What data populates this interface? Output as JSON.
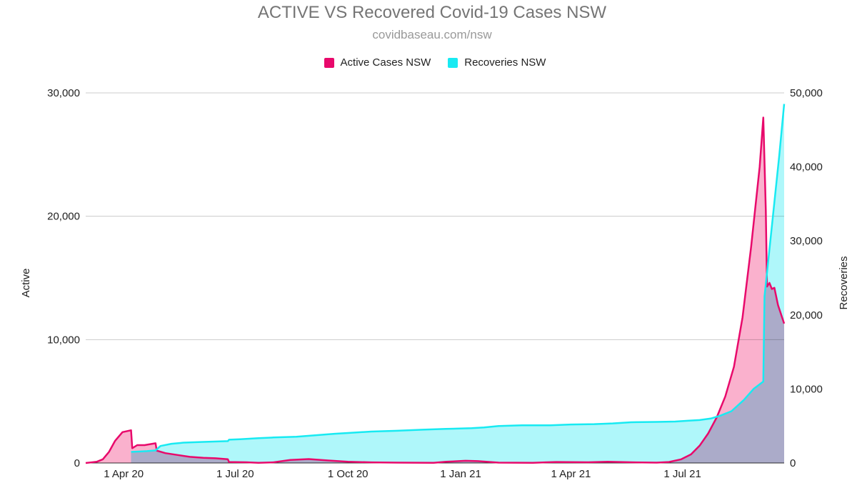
{
  "chart_data": {
    "type": "area",
    "title": "ACTIVE VS Recovered Covid-19 Cases NSW",
    "subtitle": "covidbaseau.com/nsw",
    "y_left_label": "Active",
    "y_right_label": "Recoveries",
    "x_ticks": [
      "1 Apr 20",
      "1 Jul 20",
      "1 Oct 20",
      "1 Jan 21",
      "1 Apr 21",
      "1 Jul 21"
    ],
    "x_tick_dates": [
      "2020-04-01",
      "2020-07-01",
      "2020-10-01",
      "2021-01-01",
      "2021-04-01",
      "2021-07-01"
    ],
    "y_left_ticks": [
      "0",
      "10,000",
      "20,000",
      "30,000"
    ],
    "y_right_ticks": [
      "0",
      "10,000",
      "20,000",
      "30,000",
      "40,000",
      "50,000"
    ],
    "ylim_left": [
      0,
      30000
    ],
    "ylim_right": [
      0,
      50000
    ],
    "xlim": [
      "2020-03-01",
      "2021-09-22"
    ],
    "grid": true,
    "legend_position": "top",
    "series": [
      {
        "name": "Active Cases NSW",
        "axis": "left",
        "color": "#e8096b",
        "fill": "#f9a9c8",
        "points": [
          [
            "2020-03-01",
            0
          ],
          [
            "2020-03-10",
            100
          ],
          [
            "2020-03-15",
            300
          ],
          [
            "2020-03-20",
            900
          ],
          [
            "2020-03-25",
            1800
          ],
          [
            "2020-03-31",
            2500
          ],
          [
            "2020-04-07",
            2650
          ],
          [
            "2020-04-08",
            1200
          ],
          [
            "2020-04-12",
            1450
          ],
          [
            "2020-04-18",
            1450
          ],
          [
            "2020-04-27",
            1600
          ],
          [
            "2020-04-28",
            1000
          ],
          [
            "2020-05-05",
            800
          ],
          [
            "2020-05-15",
            650
          ],
          [
            "2020-05-25",
            500
          ],
          [
            "2020-06-05",
            420
          ],
          [
            "2020-06-15",
            380
          ],
          [
            "2020-06-25",
            300
          ],
          [
            "2020-06-26",
            80
          ],
          [
            "2020-07-10",
            60
          ],
          [
            "2020-07-20",
            20
          ],
          [
            "2020-08-01",
            50
          ],
          [
            "2020-08-15",
            250
          ],
          [
            "2020-08-30",
            320
          ],
          [
            "2020-09-15",
            200
          ],
          [
            "2020-10-01",
            100
          ],
          [
            "2020-10-20",
            50
          ],
          [
            "2020-11-10",
            30
          ],
          [
            "2020-12-10",
            20
          ],
          [
            "2020-12-20",
            100
          ],
          [
            "2021-01-05",
            180
          ],
          [
            "2021-01-15",
            150
          ],
          [
            "2021-02-01",
            30
          ],
          [
            "2021-03-01",
            20
          ],
          [
            "2021-03-20",
            80
          ],
          [
            "2021-04-15",
            60
          ],
          [
            "2021-05-01",
            100
          ],
          [
            "2021-05-20",
            60
          ],
          [
            "2021-06-10",
            30
          ],
          [
            "2021-06-20",
            80
          ],
          [
            "2021-06-30",
            300
          ],
          [
            "2021-07-08",
            700
          ],
          [
            "2021-07-15",
            1400
          ],
          [
            "2021-07-22",
            2400
          ],
          [
            "2021-07-29",
            3700
          ],
          [
            "2021-08-05",
            5400
          ],
          [
            "2021-08-12",
            7800
          ],
          [
            "2021-08-19",
            11800
          ],
          [
            "2021-08-26",
            17500
          ],
          [
            "2021-09-02",
            24000
          ],
          [
            "2021-09-05",
            28000
          ],
          [
            "2021-09-07",
            20500
          ],
          [
            "2021-09-08",
            14300
          ],
          [
            "2021-09-10",
            14600
          ],
          [
            "2021-09-12",
            14100
          ],
          [
            "2021-09-14",
            14200
          ],
          [
            "2021-09-17",
            12800
          ],
          [
            "2021-09-22",
            11300
          ]
        ]
      },
      {
        "name": "Recoveries NSW",
        "axis": "right",
        "color": "#18eaf2",
        "fill": "#a6f6fa",
        "points": [
          [
            "2020-04-07",
            1500
          ],
          [
            "2020-04-20",
            1600
          ],
          [
            "2020-04-27",
            1700
          ],
          [
            "2020-05-01",
            2300
          ],
          [
            "2020-05-10",
            2600
          ],
          [
            "2020-05-20",
            2750
          ],
          [
            "2020-06-05",
            2850
          ],
          [
            "2020-06-25",
            2950
          ],
          [
            "2020-06-26",
            3150
          ],
          [
            "2020-07-05",
            3200
          ],
          [
            "2020-07-20",
            3350
          ],
          [
            "2020-08-01",
            3450
          ],
          [
            "2020-08-20",
            3550
          ],
          [
            "2020-09-05",
            3750
          ],
          [
            "2020-09-20",
            3950
          ],
          [
            "2020-10-01",
            4050
          ],
          [
            "2020-10-20",
            4250
          ],
          [
            "2020-11-10",
            4350
          ],
          [
            "2020-12-01",
            4500
          ],
          [
            "2020-12-20",
            4600
          ],
          [
            "2021-01-10",
            4700
          ],
          [
            "2021-01-20",
            4800
          ],
          [
            "2021-02-01",
            5000
          ],
          [
            "2021-02-20",
            5100
          ],
          [
            "2021-03-15",
            5100
          ],
          [
            "2021-04-01",
            5200
          ],
          [
            "2021-04-20",
            5250
          ],
          [
            "2021-05-05",
            5350
          ],
          [
            "2021-05-20",
            5500
          ],
          [
            "2021-06-10",
            5550
          ],
          [
            "2021-06-25",
            5600
          ],
          [
            "2021-07-05",
            5700
          ],
          [
            "2021-07-15",
            5800
          ],
          [
            "2021-07-24",
            6000
          ],
          [
            "2021-08-01",
            6400
          ],
          [
            "2021-08-10",
            7000
          ],
          [
            "2021-08-20",
            8500
          ],
          [
            "2021-08-28",
            10000
          ],
          [
            "2021-09-05",
            11000
          ],
          [
            "2021-09-06",
            22500
          ],
          [
            "2021-09-12",
            32000
          ],
          [
            "2021-09-18",
            41500
          ],
          [
            "2021-09-22",
            48500
          ]
        ]
      }
    ]
  }
}
